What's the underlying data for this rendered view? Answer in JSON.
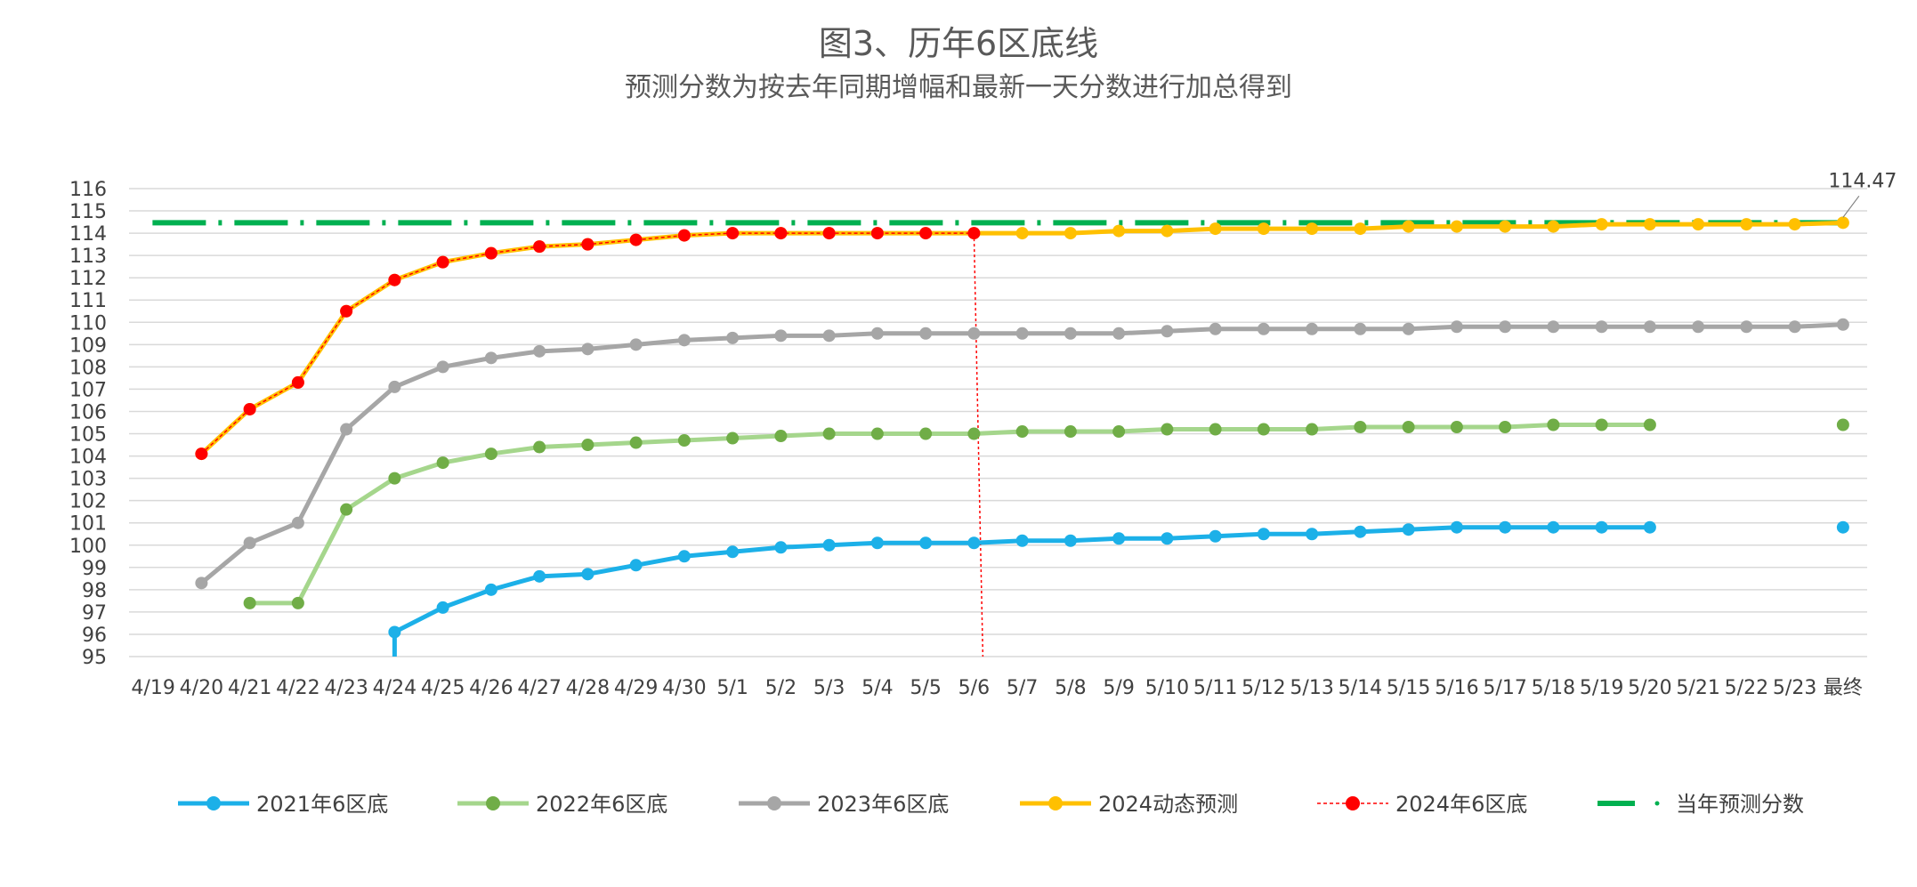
{
  "chart_data": {
    "type": "line",
    "title": "图3、历年6区底线",
    "subtitle": "预测分数为按去年同期增幅和最新一天分数进行加总得到",
    "x": [
      "4/19",
      "4/20",
      "4/21",
      "4/22",
      "4/23",
      "4/24",
      "4/25",
      "4/26",
      "4/27",
      "4/28",
      "4/29",
      "4/30",
      "5/1",
      "5/2",
      "5/3",
      "5/4",
      "5/5",
      "5/6",
      "5/7",
      "5/8",
      "5/9",
      "5/10",
      "5/11",
      "5/12",
      "5/13",
      "5/14",
      "5/15",
      "5/16",
      "5/17",
      "5/18",
      "5/19",
      "5/20",
      "5/21",
      "5/22",
      "5/23",
      "最终"
    ],
    "ylim": [
      95,
      116
    ],
    "yticks": [
      95,
      96,
      97,
      98,
      99,
      100,
      101,
      102,
      103,
      104,
      105,
      106,
      107,
      108,
      109,
      110,
      111,
      112,
      113,
      114,
      115,
      116
    ],
    "grid": true,
    "legend_position": "bottom",
    "series": [
      {
        "name": "2021年6区底",
        "color": "#1cb0e8",
        "style": "solid-marker",
        "values": [
          null,
          null,
          null,
          null,
          null,
          96.1,
          97.2,
          98.0,
          98.6,
          98.7,
          99.1,
          99.5,
          99.7,
          99.9,
          100.0,
          100.1,
          100.1,
          100.1,
          100.2,
          100.2,
          100.3,
          100.3,
          100.4,
          100.5,
          100.5,
          100.6,
          100.7,
          100.8,
          100.8,
          100.8,
          100.8,
          100.8,
          null,
          null,
          null,
          100.8
        ],
        "connect_to_last": false
      },
      {
        "name": "2022年6区底",
        "color": "#a5d68c",
        "marker_color": "#70ad47",
        "style": "solid-marker",
        "values": [
          null,
          null,
          97.4,
          97.4,
          101.6,
          103.0,
          103.7,
          104.1,
          104.4,
          104.5,
          104.6,
          104.7,
          104.8,
          104.9,
          105.0,
          105.0,
          105.0,
          105.0,
          105.1,
          105.1,
          105.1,
          105.2,
          105.2,
          105.2,
          105.2,
          105.3,
          105.3,
          105.3,
          105.3,
          105.4,
          105.4,
          105.4,
          null,
          null,
          null,
          105.4
        ],
        "connect_to_last": false
      },
      {
        "name": "2023年6区底",
        "color": "#a6a6a6",
        "marker_color": "#a6a6a6",
        "style": "solid-marker",
        "values": [
          null,
          98.3,
          100.1,
          101.0,
          105.2,
          107.1,
          108.0,
          108.4,
          108.7,
          108.8,
          109.0,
          109.2,
          109.3,
          109.4,
          109.4,
          109.5,
          109.5,
          109.5,
          109.5,
          109.5,
          109.5,
          109.6,
          109.7,
          109.7,
          109.7,
          109.7,
          109.7,
          109.8,
          109.8,
          109.8,
          109.8,
          109.8,
          109.8,
          109.8,
          109.8,
          109.9
        ],
        "connect_to_last": true
      },
      {
        "name": "2024动态预测",
        "color": "#ffc000",
        "marker_color": "#ffc000",
        "style": "solid-marker",
        "values": [
          null,
          104.1,
          106.1,
          107.3,
          110.5,
          111.9,
          112.7,
          113.1,
          113.4,
          113.5,
          113.7,
          113.9,
          114.0,
          114.0,
          114.0,
          114.0,
          114.0,
          114.0,
          114.0,
          114.0,
          114.1,
          114.1,
          114.2,
          114.2,
          114.2,
          114.2,
          114.3,
          114.3,
          114.3,
          114.3,
          114.4,
          114.4,
          114.4,
          114.4,
          114.4,
          114.47
        ],
        "connect_to_last": true
      },
      {
        "name": "2024年6区底",
        "color": "#ff0000",
        "marker_color": "#ff0000",
        "style": "dashed-marker",
        "values": [
          null,
          104.1,
          106.1,
          107.3,
          110.5,
          111.9,
          112.7,
          113.1,
          113.4,
          113.5,
          113.7,
          113.9,
          114.0,
          114.0,
          114.0,
          114.0,
          114.0,
          114.0,
          null,
          null,
          null,
          null,
          null,
          null,
          null,
          null,
          null,
          null,
          null,
          null,
          null,
          null,
          null,
          null,
          null,
          null
        ],
        "connect_to_last": false
      },
      {
        "name": "当年预测分数",
        "color": "#00b050",
        "style": "dash-dot",
        "values": [
          null,
          114.47,
          114.47,
          114.47,
          114.47,
          114.47,
          114.47,
          114.47,
          114.47,
          114.47,
          114.47,
          114.47,
          114.47,
          114.47,
          114.47,
          114.47,
          114.47,
          114.47,
          114.47,
          114.47,
          114.47,
          114.47,
          114.47,
          114.47,
          114.47,
          114.47,
          114.47,
          114.47,
          114.47,
          114.47,
          114.47,
          114.47,
          114.47,
          114.47,
          114.47,
          114.47
        ],
        "connect_to_last": true
      }
    ],
    "annotations": [
      {
        "text": "114.47",
        "x": "最终",
        "y": 114.47
      }
    ],
    "vertical_marker": {
      "x": "5/6",
      "color": "#ff0000",
      "style": "dotted"
    }
  }
}
